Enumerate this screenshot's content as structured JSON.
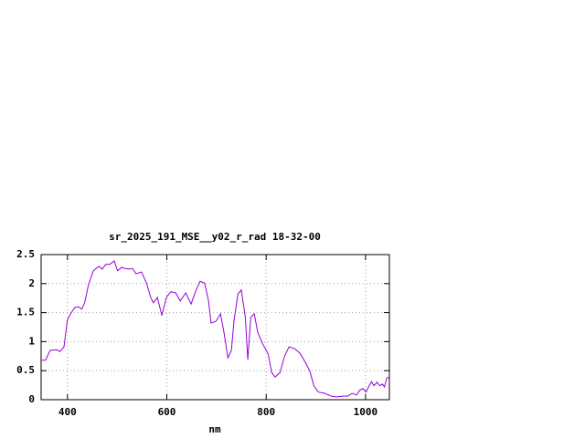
{
  "chart_data": {
    "type": "line",
    "title": "sr_2025_191_MSE__y02_r_rad 18-32-00",
    "x_label": "nm",
    "x": [
      347,
      356,
      365,
      378,
      385,
      393,
      400,
      407,
      415,
      422,
      429,
      435,
      442,
      452,
      463,
      470,
      477,
      485,
      494,
      501,
      509,
      516,
      524,
      531,
      538,
      549,
      559,
      568,
      573,
      581,
      590,
      599,
      608,
      618,
      627,
      638,
      649,
      658,
      667,
      676,
      684,
      689,
      699,
      708,
      715,
      723,
      730,
      735,
      743,
      750,
      758,
      763,
      769,
      776,
      783,
      793,
      804,
      811,
      818,
      828,
      837,
      846,
      857,
      868,
      879,
      888,
      896,
      905,
      918,
      931,
      942,
      955,
      964,
      973,
      982,
      988,
      995,
      1001,
      1006,
      1012,
      1017,
      1023,
      1029,
      1034,
      1038,
      1043,
      1048
    ],
    "series": [
      {
        "color": "#9400d3",
        "values": [
          0.68,
          0.68,
          0.85,
          0.86,
          0.83,
          0.91,
          1.38,
          1.49,
          1.59,
          1.6,
          1.56,
          1.68,
          1.97,
          2.22,
          2.3,
          2.25,
          2.33,
          2.33,
          2.39,
          2.22,
          2.28,
          2.26,
          2.25,
          2.26,
          2.17,
          2.2,
          2.01,
          1.75,
          1.67,
          1.76,
          1.45,
          1.76,
          1.86,
          1.84,
          1.7,
          1.84,
          1.65,
          1.87,
          2.04,
          2.01,
          1.7,
          1.32,
          1.35,
          1.48,
          1.16,
          0.72,
          0.85,
          1.34,
          1.82,
          1.89,
          1.42,
          0.69,
          1.42,
          1.48,
          1.16,
          0.96,
          0.79,
          0.47,
          0.39,
          0.47,
          0.75,
          0.91,
          0.88,
          0.8,
          0.64,
          0.49,
          0.24,
          0.13,
          0.11,
          0.06,
          0.05,
          0.06,
          0.06,
          0.11,
          0.08,
          0.16,
          0.19,
          0.13,
          0.22,
          0.31,
          0.24,
          0.3,
          0.24,
          0.27,
          0.22,
          0.38,
          0.38
        ]
      }
    ],
    "xlim": [
      347,
      1048
    ],
    "ylim": [
      0,
      2.5
    ],
    "xticks": [
      400,
      600,
      800,
      1000
    ],
    "yticks": [
      0,
      0.5,
      1,
      1.5,
      2,
      2.5
    ],
    "grid": true
  }
}
